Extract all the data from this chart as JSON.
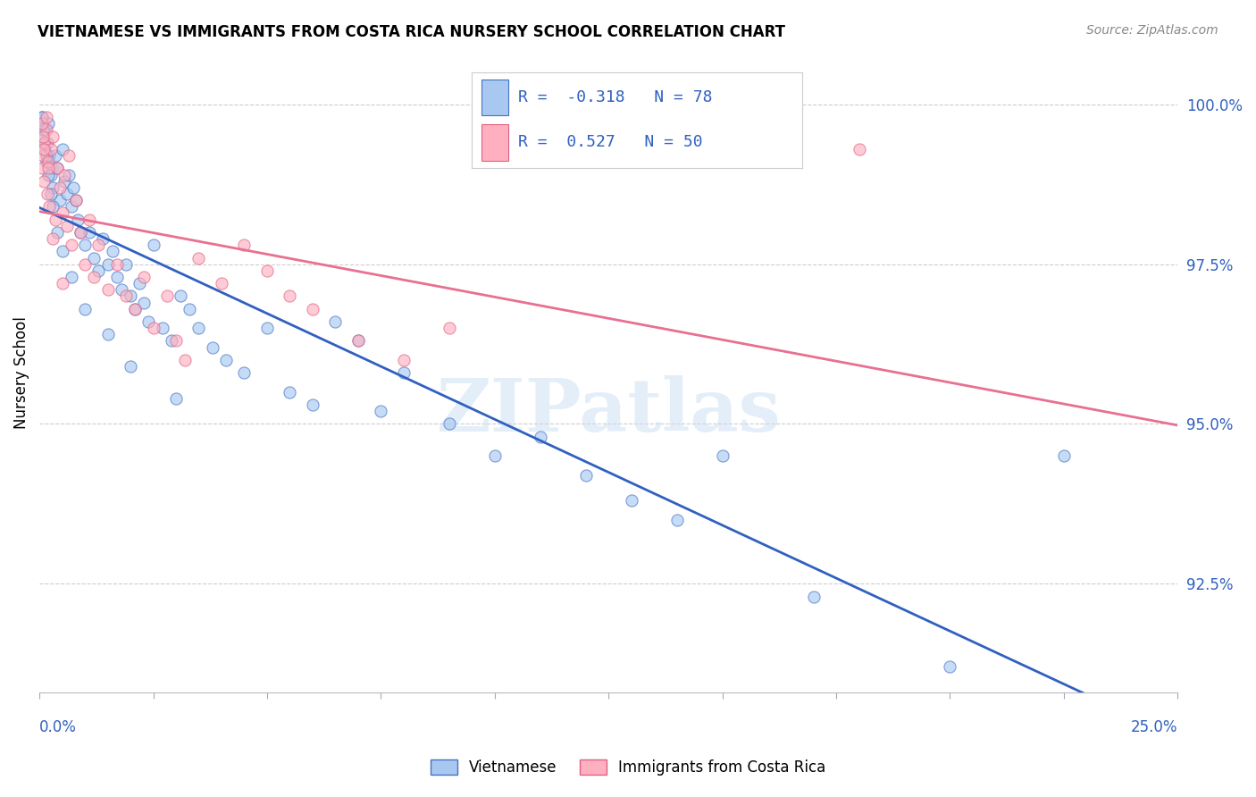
{
  "title": "VIETNAMESE VS IMMIGRANTS FROM COSTA RICA NURSERY SCHOOL CORRELATION CHART",
  "source": "Source: ZipAtlas.com",
  "ylabel": "Nursery School",
  "xmin": 0.0,
  "xmax": 25.0,
  "ymin": 90.8,
  "ymax": 100.8,
  "r_vietnamese": -0.318,
  "n_vietnamese": 78,
  "r_costa_rica": 0.527,
  "n_costa_rica": 50,
  "color_vietnamese_fill": "#a8c8f0",
  "color_vietnamese_edge": "#4472c4",
  "color_costa_rica_fill": "#ffb0c0",
  "color_costa_rica_edge": "#e06080",
  "color_trendline_vietnamese": "#3060c0",
  "color_trendline_costa_rica": "#e87090",
  "legend_label_vietnamese": "Vietnamese",
  "legend_label_costa_rica": "Immigrants from Costa Rica",
  "watermark_text": "ZIPatlas",
  "ytick_vals": [
    92.5,
    95.0,
    97.5,
    100.0
  ],
  "viet_x": [
    0.05,
    0.08,
    0.1,
    0.12,
    0.15,
    0.18,
    0.2,
    0.22,
    0.25,
    0.28,
    0.3,
    0.35,
    0.4,
    0.45,
    0.5,
    0.55,
    0.6,
    0.65,
    0.7,
    0.75,
    0.8,
    0.85,
    0.9,
    1.0,
    1.1,
    1.2,
    1.3,
    1.4,
    1.5,
    1.6,
    1.7,
    1.8,
    1.9,
    2.0,
    2.1,
    2.2,
    2.3,
    2.4,
    2.5,
    2.7,
    2.9,
    3.1,
    3.3,
    3.5,
    3.8,
    4.1,
    4.5,
    5.0,
    5.5,
    6.0,
    6.5,
    7.0,
    7.5,
    8.0,
    9.0,
    10.0,
    11.0,
    12.0,
    13.0,
    14.0,
    15.0,
    17.0,
    20.0,
    22.5,
    0.05,
    0.07,
    0.1,
    0.15,
    0.2,
    0.25,
    0.3,
    0.4,
    0.5,
    0.7,
    1.0,
    1.5,
    2.0,
    3.0
  ],
  "viet_y": [
    99.8,
    99.5,
    99.3,
    99.6,
    99.1,
    99.4,
    99.7,
    99.2,
    98.9,
    99.0,
    98.7,
    99.2,
    99.0,
    98.5,
    99.3,
    98.8,
    98.6,
    98.9,
    98.4,
    98.7,
    98.5,
    98.2,
    98.0,
    97.8,
    98.0,
    97.6,
    97.4,
    97.9,
    97.5,
    97.7,
    97.3,
    97.1,
    97.5,
    97.0,
    96.8,
    97.2,
    96.9,
    96.6,
    97.8,
    96.5,
    96.3,
    97.0,
    96.8,
    96.5,
    96.2,
    96.0,
    95.8,
    96.5,
    95.5,
    95.3,
    96.6,
    96.3,
    95.2,
    95.8,
    95.0,
    94.5,
    94.8,
    94.2,
    93.8,
    93.5,
    94.5,
    92.3,
    91.2,
    94.5,
    99.8,
    99.6,
    99.4,
    99.2,
    98.9,
    98.6,
    98.4,
    98.0,
    97.7,
    97.3,
    96.8,
    96.4,
    95.9,
    95.4
  ],
  "cr_x": [
    0.05,
    0.08,
    0.1,
    0.12,
    0.15,
    0.18,
    0.2,
    0.22,
    0.25,
    0.3,
    0.35,
    0.4,
    0.45,
    0.5,
    0.55,
    0.6,
    0.65,
    0.7,
    0.8,
    0.9,
    1.0,
    1.1,
    1.2,
    1.3,
    1.5,
    1.7,
    1.9,
    2.1,
    2.3,
    2.5,
    2.8,
    3.0,
    3.5,
    4.0,
    4.5,
    5.0,
    5.5,
    6.0,
    7.0,
    8.0,
    9.0,
    0.05,
    0.08,
    0.1,
    0.15,
    0.2,
    0.3,
    0.5,
    18.0,
    3.2
  ],
  "cr_y": [
    99.0,
    99.2,
    98.8,
    99.4,
    99.6,
    98.6,
    99.1,
    98.4,
    99.3,
    99.5,
    98.2,
    99.0,
    98.7,
    98.3,
    98.9,
    98.1,
    99.2,
    97.8,
    98.5,
    98.0,
    97.5,
    98.2,
    97.3,
    97.8,
    97.1,
    97.5,
    97.0,
    96.8,
    97.3,
    96.5,
    97.0,
    96.3,
    97.6,
    97.2,
    97.8,
    97.4,
    97.0,
    96.8,
    96.3,
    96.0,
    96.5,
    99.7,
    99.5,
    99.3,
    99.8,
    99.0,
    97.9,
    97.2,
    99.3,
    96.0
  ]
}
